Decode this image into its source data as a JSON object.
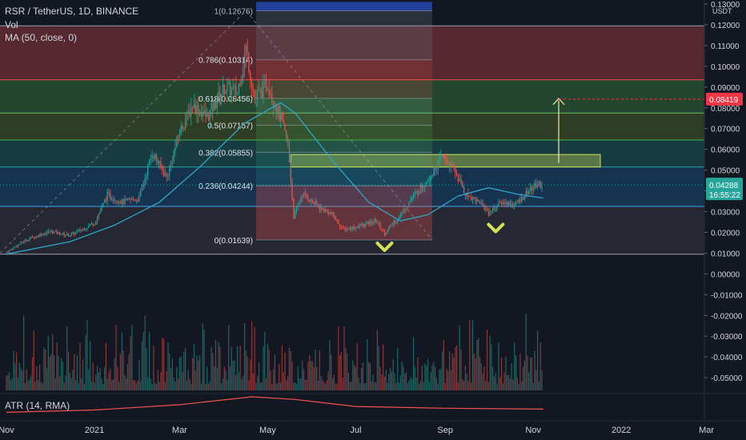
{
  "legend": {
    "title": "RSR / TetherUS, 1D, BINANCE",
    "volume": "Vol",
    "ma": "MA (50, close, 0)"
  },
  "atr_label": "ATR (14, RMA)",
  "currency": "USDT",
  "colors": {
    "background": "#131722",
    "up": "#26a69a",
    "down": "#ef5350",
    "ma": "#2196f3",
    "atr": "#ef5350",
    "highlight_box": "#d4e157",
    "checkmark": "#d4e157",
    "current_price": "#26a69a",
    "target_price": "#f23645"
  },
  "chart_data": {
    "type": "candlestick",
    "x_tick_labels": [
      "Nov",
      "2021",
      "Mar",
      "May",
      "Jul",
      "Sep",
      "Nov",
      "2022",
      "Mar"
    ],
    "y_tick_labels": [
      "0.13000",
      "0.12000",
      "0.11000",
      "0.10000",
      "0.09000",
      "0.08000",
      "0.07000",
      "0.06000",
      "0.05000",
      "0.04000",
      "0.03000",
      "0.02000",
      "0.01000",
      "0.00000",
      "-0.01000",
      "-0.02000",
      "-0.03000",
      "-0.04000",
      "-0.05000"
    ],
    "ylim": [
      -0.055,
      0.131
    ],
    "fibonacci": [
      {
        "label": "1(0.12676)",
        "price": 0.12676
      },
      {
        "label": "0.786(0.10314)",
        "price": 0.10314
      },
      {
        "label": "0.618(0.08456)",
        "price": 0.08456
      },
      {
        "label": "0.5(0.07157)",
        "price": 0.07157
      },
      {
        "label": "0.382(0.05855)",
        "price": 0.05855
      },
      {
        "label": "0.236(0.04244)",
        "price": 0.04244
      },
      {
        "label": "0(0.01639)",
        "price": 0.01639
      }
    ],
    "horizontal_levels": [
      0.1195,
      0.0935,
      0.0775,
      0.0645,
      0.0515,
      0.0325,
      0.0095
    ],
    "current_price": {
      "label": "0.04288",
      "countdown": "16:55:22",
      "value": 0.04288
    },
    "target_price": {
      "label": "0.08419",
      "value": 0.08419
    },
    "price_path": [
      [
        "2020-11-01",
        0.0105
      ],
      [
        "2020-11-15",
        0.0165
      ],
      [
        "2020-12-01",
        0.0205
      ],
      [
        "2020-12-15",
        0.0185
      ],
      [
        "2021-01-01",
        0.0245
      ],
      [
        "2021-01-10",
        0.038
      ],
      [
        "2021-01-20",
        0.0345
      ],
      [
        "2021-02-01",
        0.0365
      ],
      [
        "2021-02-10",
        0.0585
      ],
      [
        "2021-02-20",
        0.0465
      ],
      [
        "2021-03-01",
        0.0685
      ],
      [
        "2021-03-10",
        0.0815
      ],
      [
        "2021-03-20",
        0.0755
      ],
      [
        "2021-04-01",
        0.0895
      ],
      [
        "2021-04-10",
        0.0875
      ],
      [
        "2021-04-16",
        0.1085
      ],
      [
        "2021-04-22",
        0.0845
      ],
      [
        "2021-05-01",
        0.0915
      ],
      [
        "2021-05-10",
        0.0745
      ],
      [
        "2021-05-15",
        0.0625
      ],
      [
        "2021-05-19",
        0.0275
      ],
      [
        "2021-05-25",
        0.0385
      ],
      [
        "2021-06-05",
        0.0325
      ],
      [
        "2021-06-15",
        0.0285
      ],
      [
        "2021-06-22",
        0.0215
      ],
      [
        "2021-07-01",
        0.0225
      ],
      [
        "2021-07-15",
        0.0255
      ],
      [
        "2021-07-21",
        0.0195
      ],
      [
        "2021-08-01",
        0.0285
      ],
      [
        "2021-08-10",
        0.0375
      ],
      [
        "2021-08-20",
        0.0455
      ],
      [
        "2021-08-30",
        0.0565
      ],
      [
        "2021-09-07",
        0.0505
      ],
      [
        "2021-09-15",
        0.0385
      ],
      [
        "2021-09-25",
        0.0345
      ],
      [
        "2021-10-01",
        0.0295
      ],
      [
        "2021-10-10",
        0.0345
      ],
      [
        "2021-10-20",
        0.0335
      ],
      [
        "2021-10-28",
        0.0395
      ],
      [
        "2021-11-04",
        0.0435
      ],
      [
        "2021-11-08",
        0.04288
      ]
    ],
    "ma_path": [
      [
        "2020-11-01",
        0.0095
      ],
      [
        "2020-12-15",
        0.0155
      ],
      [
        "2021-01-15",
        0.0235
      ],
      [
        "2021-02-15",
        0.0345
      ],
      [
        "2021-03-15",
        0.0515
      ],
      [
        "2021-04-15",
        0.0725
      ],
      [
        "2021-05-10",
        0.0825
      ],
      [
        "2021-05-20",
        0.0775
      ],
      [
        "2021-06-15",
        0.0545
      ],
      [
        "2021-07-10",
        0.0345
      ],
      [
        "2021-08-01",
        0.0255
      ],
      [
        "2021-08-20",
        0.0285
      ],
      [
        "2021-09-10",
        0.0375
      ],
      [
        "2021-10-01",
        0.0415
      ],
      [
        "2021-10-20",
        0.0385
      ],
      [
        "2021-11-08",
        0.0365
      ]
    ],
    "atr_path": [
      [
        "2020-11-01",
        0.12
      ],
      [
        "2021-01-01",
        0.25
      ],
      [
        "2021-03-01",
        0.55
      ],
      [
        "2021-04-20",
        1.0
      ],
      [
        "2021-05-20",
        0.85
      ],
      [
        "2021-07-01",
        0.45
      ],
      [
        "2021-09-01",
        0.35
      ],
      [
        "2021-11-08",
        0.3
      ]
    ]
  }
}
